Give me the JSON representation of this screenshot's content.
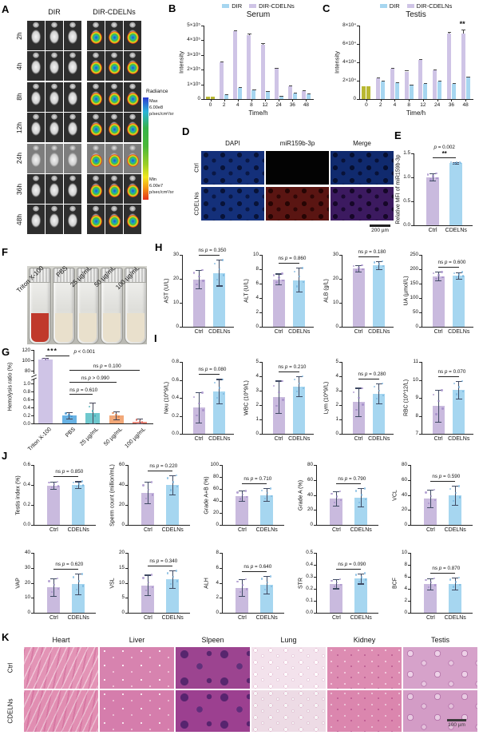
{
  "colors": {
    "ctrl": "#c9bade",
    "cdelns": "#a6d6f0",
    "ctrl_dot": "#9d85c6",
    "cdelns_dot": "#6fb0dc",
    "err": "#3f4a63",
    "zero": "#b9b832",
    "axis": "#222222"
  },
  "panelA": {
    "label": "A",
    "group_headers": [
      "DIR",
      "DIR-CDELNs"
    ],
    "timepoints": [
      "2h",
      "4h",
      "8h",
      "12h",
      "24h",
      "36h",
      "48h"
    ],
    "mice_per_group": 3,
    "colorbar": {
      "title": "Radiance",
      "max_label": "Max",
      "max_value": "6.00e8",
      "unit": "p/sec/cm²/sr",
      "min_label": "Min",
      "min_value": "6.00e7"
    }
  },
  "panelB": {
    "label": "B",
    "chart_data": {
      "type": "bar",
      "title": "Serum",
      "ylabel": "Intensity",
      "xlabel": "Time/h",
      "categories": [
        "0",
        "2",
        "4",
        "8",
        "12",
        "24",
        "36",
        "48"
      ],
      "ymax": 5,
      "yticks": [
        {
          "v": 0,
          "t": "0"
        },
        {
          "v": 1,
          "t": "1×10⁵"
        },
        {
          "v": 2,
          "t": "2×10⁵"
        },
        {
          "v": 3,
          "t": "3×10⁵"
        },
        {
          "v": 4,
          "t": "4×10⁵"
        },
        {
          "v": 5,
          "t": "5×10⁵"
        }
      ],
      "legend": [
        {
          "name": "DIR",
          "color": "#a6d6f0"
        },
        {
          "name": "DIR-CDELNs",
          "color": "#cfc4e6"
        }
      ],
      "series": [
        {
          "name": "DIR-CDELNs",
          "color": "#cfc4e6",
          "values": [
            0.15,
            2.5,
            4.6,
            4.35,
            3.7,
            2.05,
            0.85,
            0.55
          ],
          "errors": [
            0,
            0.06,
            0.1,
            0.08,
            0.08,
            0.06,
            0.05,
            0.04
          ]
        },
        {
          "name": "DIR",
          "color": "#a6d6f0",
          "values": [
            0.15,
            0.3,
            0.75,
            0.6,
            0.5,
            0.2,
            0.4,
            0.35
          ],
          "errors": [
            0,
            0.02,
            0.04,
            0.03,
            0.02,
            0.02,
            0.02,
            0.02
          ]
        }
      ],
      "zero_color": "#b9b832"
    }
  },
  "panelC": {
    "label": "C",
    "chart_data": {
      "type": "bar",
      "title": "Testis",
      "ylabel": "Intensity",
      "xlabel": "Time/h",
      "categories": [
        "0",
        "2",
        "4",
        "8",
        "12",
        "24",
        "36",
        "48"
      ],
      "ymax": 8,
      "yticks": [
        {
          "v": 0,
          "t": "0"
        },
        {
          "v": 2,
          "t": "2×10⁴"
        },
        {
          "v": 4,
          "t": "4×10⁴"
        },
        {
          "v": 6,
          "t": "6×10⁴"
        },
        {
          "v": 8,
          "t": "8×10⁴"
        }
      ],
      "legend": [
        {
          "name": "DIR",
          "color": "#a6d6f0"
        },
        {
          "name": "DIR-CDELNs",
          "color": "#cfc4e6"
        }
      ],
      "series": [
        {
          "name": "DIR-CDELNs",
          "color": "#cfc4e6",
          "values": [
            1.4,
            2.25,
            3.3,
            3.0,
            4.25,
            3.15,
            7.15,
            7.1
          ],
          "errors": [
            0,
            0.08,
            0.12,
            0.1,
            0.12,
            0.1,
            0.15,
            0.5
          ]
        },
        {
          "name": "DIR",
          "color": "#a6d6f0",
          "values": [
            1.4,
            1.95,
            1.8,
            1.55,
            1.65,
            1.95,
            1.65,
            2.35
          ],
          "errors": [
            0,
            0.05,
            0.05,
            0.05,
            0.05,
            0.05,
            0.05,
            0.08
          ]
        }
      ],
      "zero_color": "#b9b832",
      "sig": {
        "cat": 7,
        "text": "**"
      }
    }
  },
  "panelD": {
    "label": "D",
    "col_headers": [
      "DAPI",
      "miR159b-3p",
      "Merge"
    ],
    "row_labels": [
      "Ctrl",
      "CDELNs"
    ],
    "scale_bar": "200 µm"
  },
  "panelE": {
    "label": "E",
    "chart_data": {
      "type": "bar",
      "ylabel": "Relative MFI of miR159b-3p",
      "categories": [
        "Ctrl",
        "CDELNs"
      ],
      "values": [
        1.0,
        1.3
      ],
      "errors": [
        0.08,
        0.02
      ],
      "ymax": 1.5,
      "yticks": [
        "0.0",
        "0.5",
        "1.0",
        "1.5"
      ],
      "sig_p": "p = 0.002",
      "sig_mark": "**"
    }
  },
  "panelF": {
    "label": "F",
    "tube_labels": [
      "Triton X-100",
      "PBS",
      "25 µg/mL",
      "50 µg/mL",
      "100 µg/mL"
    ],
    "liquid_colors": [
      "#c0392b",
      "#e9e0cc",
      "#e9e0cc",
      "#e9e0cc",
      "#e9e0cc"
    ]
  },
  "panelG": {
    "label": "G",
    "chart_data": {
      "type": "bar",
      "ylabel": "Hemolysis ratio (%)",
      "broken_axis": true,
      "top_ticks": [
        "80",
        "100",
        "120"
      ],
      "bottom_ticks": [
        "0.0",
        "0.2",
        "0.4",
        "0.6",
        "0.8",
        "1.0"
      ],
      "categories": [
        "Triton X-100",
        "PBS",
        "25 µg/mL",
        "50 µg/mL",
        "100 µg/mL"
      ],
      "values": [
        102,
        0.2,
        0.27,
        0.2,
        0.05
      ],
      "errors": [
        2,
        0.08,
        0.26,
        0.1,
        0.07
      ],
      "colors": [
        "#cfc4e6",
        "#68b2e4",
        "#6ec8ce",
        "#f2a878",
        "#ee8f80"
      ],
      "dot_colors": [
        "#9f86c4",
        "#3f8fc9",
        "#3fa8b0",
        "#e07f48",
        "#d96055"
      ],
      "sigs": {
        "top": {
          "stars": "***",
          "p": "p < 0.001"
        },
        "lines": [
          {
            "to": 4,
            "ns": "ns",
            "p": "p = 0.100"
          },
          {
            "to": 3,
            "ns": "ns",
            "p": "p > 0.990"
          },
          {
            "to": 2,
            "ns": "ns",
            "p": "p = 0.610"
          }
        ]
      }
    }
  },
  "panelH": {
    "label": "H",
    "charts": [
      {
        "type": "bar",
        "ylabel": "AST (U/L)",
        "ymax": 30,
        "yticks": [
          "0",
          "10",
          "20",
          "30"
        ],
        "categories": [
          "Ctrl",
          "CDELNs"
        ],
        "values": [
          19.8,
          22.5
        ],
        "errors": [
          4,
          5.5
        ],
        "sig_ns": "ns",
        "sig_p": "p = 0.350"
      },
      {
        "type": "bar",
        "ylabel": "ALT (U/L)",
        "ymax": 10,
        "yticks": [
          "0",
          "2",
          "4",
          "6",
          "8",
          "10"
        ],
        "categories": [
          "Ctrl",
          "CDELNs"
        ],
        "values": [
          6.6,
          6.5
        ],
        "errors": [
          0.8,
          1.7
        ],
        "sig_ns": "ns",
        "sig_p": "p = 0.860"
      },
      {
        "type": "bar",
        "ylabel": "ALB (g/L)",
        "ymax": 30,
        "yticks": [
          "0",
          "10",
          "20",
          "30"
        ],
        "categories": [
          "Ctrl",
          "CDELNs"
        ],
        "values": [
          24.3,
          25.6
        ],
        "errors": [
          1.5,
          1.8
        ],
        "sig_ns": "ns",
        "sig_p": "p = 0.180"
      },
      {
        "type": "bar",
        "ylabel": "UA (µmol/L)",
        "ymax": 250,
        "yticks": [
          "0",
          "50",
          "100",
          "150",
          "200",
          "250"
        ],
        "categories": [
          "Ctrl",
          "CDELNs"
        ],
        "values": [
          175,
          178
        ],
        "errors": [
          16,
          12
        ],
        "sig_ns": "ns",
        "sig_p": "p = 0.600"
      }
    ]
  },
  "panelI": {
    "label": "I",
    "charts": [
      {
        "type": "bar",
        "ylabel": "Neu (10^9/L)",
        "ymax": 0.8,
        "yticks": [
          "0.0",
          "0.2",
          "0.4",
          "0.6",
          "0.8"
        ],
        "categories": [
          "Ctrl",
          "CDELNs"
        ],
        "values": [
          0.29,
          0.47
        ],
        "errors": [
          0.17,
          0.14
        ],
        "sig_ns": "ns",
        "sig_p": "p = 0.080"
      },
      {
        "type": "bar",
        "ylabel": "WBC (10^9/L)",
        "ymax": 5,
        "yticks": [
          "0",
          "1",
          "2",
          "3",
          "4",
          "5"
        ],
        "categories": [
          "Ctrl",
          "CDELNs"
        ],
        "values": [
          2.55,
          3.3
        ],
        "errors": [
          1.15,
          0.7
        ],
        "sig_ns": "ns",
        "sig_p": "p = 0.210"
      },
      {
        "type": "bar",
        "ylabel": "Lym (10^9/L)",
        "ymax": 5,
        "yticks": [
          "0",
          "1",
          "2",
          "3",
          "4",
          "5"
        ],
        "categories": [
          "Ctrl",
          "CDELNs"
        ],
        "values": [
          2.2,
          2.8
        ],
        "errors": [
          1.0,
          0.7
        ],
        "sig_ns": "ns",
        "sig_p": "p = 0.280"
      },
      {
        "type": "bar",
        "ylabel": "RBC (10^12/L)",
        "ymin": 7,
        "ymax": 11,
        "yticks": [
          "7",
          "8",
          "9",
          "10",
          "11"
        ],
        "categories": [
          "Ctrl",
          "CDELNs"
        ],
        "values": [
          8.55,
          9.45
        ],
        "errors": [
          0.9,
          0.5
        ],
        "sig_ns": "ns",
        "sig_p": "p = 0.070"
      }
    ]
  },
  "panelJ": {
    "label": "J",
    "charts": [
      {
        "type": "bar",
        "ylabel": "Testis index (%)",
        "ymax": 0.6,
        "yticks": [
          "0.0",
          "0.2",
          "0.4",
          "0.6"
        ],
        "categories": [
          "Ctrl",
          "CDELNs"
        ],
        "values": [
          0.395,
          0.402
        ],
        "errors": [
          0.04,
          0.035
        ],
        "sig_ns": "ns",
        "sig_p": "p = 0.850"
      },
      {
        "type": "bar",
        "ylabel": "Sperm count (million/mL)",
        "ymax": 60,
        "yticks": [
          "0",
          "20",
          "40",
          "60"
        ],
        "categories": [
          "Ctrl",
          "CDELNs"
        ],
        "values": [
          32,
          40
        ],
        "errors": [
          11,
          10
        ],
        "sig_ns": "ns",
        "sig_p": "p = 0.220"
      },
      {
        "type": "bar",
        "ylabel": "Grade A+B (%)",
        "ymax": 100,
        "yticks": [
          "0",
          "20",
          "40",
          "60",
          "80",
          "100"
        ],
        "categories": [
          "Ctrl",
          "CDELNs"
        ],
        "values": [
          48,
          50
        ],
        "errors": [
          9,
          11
        ],
        "sig_ns": "ns",
        "sig_p": "p = 0.710"
      },
      {
        "type": "bar",
        "ylabel": "Grade A (%)",
        "ymax": 80,
        "yticks": [
          "0",
          "20",
          "40",
          "60",
          "80"
        ],
        "categories": [
          "Ctrl",
          "CDELNs"
        ],
        "values": [
          35,
          36.5
        ],
        "errors": [
          10,
          12.5
        ],
        "sig_ns": "ns",
        "sig_p": "p = 0.790"
      },
      {
        "type": "bar",
        "ylabel": "VCL",
        "ymax": 80,
        "yticks": [
          "0",
          "20",
          "40",
          "60",
          "80"
        ],
        "categories": [
          "Ctrl",
          "CDELNs"
        ],
        "values": [
          35,
          39
        ],
        "errors": [
          12,
          13
        ],
        "sig_ns": "ns",
        "sig_p": "p = 0.590"
      },
      {
        "type": "bar",
        "ylabel": "VAP",
        "ymax": 40,
        "yticks": [
          "0",
          "10",
          "20",
          "30",
          "40"
        ],
        "categories": [
          "Ctrl",
          "CDELNs"
        ],
        "values": [
          17,
          19
        ],
        "errors": [
          6,
          7
        ],
        "sig_ns": "ns",
        "sig_p": "p = 0.620"
      },
      {
        "type": "bar",
        "ylabel": "VSL",
        "ymax": 20,
        "yticks": [
          "0",
          "5",
          "10",
          "15",
          "20"
        ],
        "categories": [
          "Ctrl",
          "CDELNs"
        ],
        "values": [
          9.2,
          11.1
        ],
        "errors": [
          3.5,
          3.0
        ],
        "sig_ns": "ns",
        "sig_p": "p = 0.340"
      },
      {
        "type": "bar",
        "ylabel": "ALH",
        "ymax": 8,
        "yticks": [
          "0",
          "2",
          "4",
          "6",
          "8"
        ],
        "categories": [
          "Ctrl",
          "CDELNs"
        ],
        "values": [
          3.35,
          3.7
        ],
        "errors": [
          1.15,
          1.2
        ],
        "sig_ns": "ns",
        "sig_p": "p = 0.640"
      },
      {
        "type": "bar",
        "ylabel": "STR",
        "ymax": 0.5,
        "yticks": [
          "0.0",
          "0.1",
          "0.2",
          "0.3",
          "0.4",
          "0.5"
        ],
        "categories": [
          "Ctrl",
          "CDELNs"
        ],
        "values": [
          0.24,
          0.285
        ],
        "errors": [
          0.04,
          0.045
        ],
        "sig_ns": "ns",
        "sig_p": "p = 0.090"
      },
      {
        "type": "bar",
        "ylabel": "BCF",
        "ymax": 10,
        "yticks": [
          "0",
          "2",
          "4",
          "6",
          "8",
          "10"
        ],
        "categories": [
          "Ctrl",
          "CDELNs"
        ],
        "values": [
          4.75,
          4.85
        ],
        "errors": [
          1.0,
          1.0
        ],
        "sig_ns": "ns",
        "sig_p": "p = 0.870"
      }
    ]
  },
  "panelK": {
    "label": "K",
    "organ_headers": [
      "Heart",
      "Liver",
      "Slpeen",
      "Lung",
      "Kidney",
      "Testis"
    ],
    "row_labels": [
      "Ctrl",
      "CDELNs"
    ],
    "scale_bar": "100 µm"
  }
}
